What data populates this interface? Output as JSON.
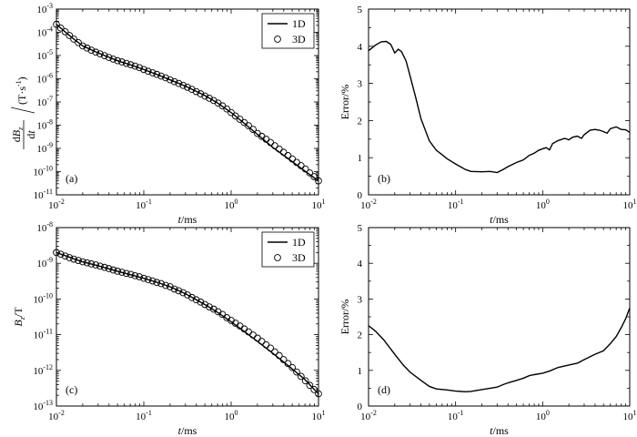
{
  "chart_data": [
    {
      "id": "a",
      "type": "line",
      "panel_label": "(a)",
      "x_scale": "log",
      "y_scale": "log",
      "xlabel": "t/ms",
      "xlabel_italic": "t",
      "xlabel_unit": "/ms",
      "ylabel": "dBz/dt /(T·s⁻¹)",
      "ylabel_num": "dB",
      "ylabel_sub": "z",
      "ylabel_den": "dt",
      "ylabel_unit": "(T·s",
      "ylabel_unit_sup": "-1",
      "ylabel_unit_close": ")",
      "xlim": [
        0.01,
        10
      ],
      "ylim": [
        1e-11,
        0.001
      ],
      "x_ticks": [
        {
          "value": 0.01,
          "base": "10",
          "exp": "-2"
        },
        {
          "value": 0.1,
          "base": "10",
          "exp": "-1"
        },
        {
          "value": 1,
          "base": "10",
          "exp": "0"
        },
        {
          "value": 10,
          "base": "10",
          "exp": "1"
        }
      ],
      "y_ticks": [
        {
          "value": 0.001,
          "base": "10",
          "exp": "-3"
        },
        {
          "value": 0.0001,
          "base": "10",
          "exp": "-4"
        },
        {
          "value": 1e-05,
          "base": "10",
          "exp": "-5"
        },
        {
          "value": 1e-06,
          "base": "10",
          "exp": "-6"
        },
        {
          "value": 1e-07,
          "base": "10",
          "exp": "-7"
        },
        {
          "value": 1e-08,
          "base": "10",
          "exp": "-8"
        },
        {
          "value": 1e-09,
          "base": "10",
          "exp": "-9"
        },
        {
          "value": 1e-10,
          "base": "10",
          "exp": "-10"
        },
        {
          "value": 1e-11,
          "base": "10",
          "exp": "-11"
        }
      ],
      "legend": {
        "position": "top-right",
        "entries": [
          "1D",
          "3D"
        ]
      },
      "series": [
        {
          "name": "1D",
          "style": "line",
          "x": [
            0.01,
            0.015,
            0.02,
            0.03,
            0.05,
            0.07,
            0.1,
            0.15,
            0.2,
            0.3,
            0.5,
            0.7,
            1,
            1.5,
            2,
            3,
            5,
            7,
            10
          ],
          "y": [
            0.00022,
            6e-05,
            2.6e-05,
            1.3e-05,
            6e-06,
            4e-06,
            2.5e-06,
            1.4e-06,
            9e-07,
            4.8e-07,
            1.9e-07,
            9e-08,
            3.5e-08,
            1e-08,
            4e-09,
            1.1e-09,
            2.7e-10,
            1.05e-10,
            4e-11
          ]
        },
        {
          "name": "3D",
          "style": "circle",
          "x": [
            0.01,
            0.0112,
            0.0126,
            0.0141,
            0.0158,
            0.0178,
            0.02,
            0.0224,
            0.0251,
            0.0282,
            0.0316,
            0.0355,
            0.0398,
            0.0447,
            0.0501,
            0.0562,
            0.0631,
            0.0708,
            0.0794,
            0.0891,
            0.1,
            0.112,
            0.126,
            0.141,
            0.158,
            0.178,
            0.2,
            0.224,
            0.251,
            0.282,
            0.316,
            0.355,
            0.398,
            0.447,
            0.501,
            0.562,
            0.631,
            0.708,
            0.794,
            0.891,
            1,
            1.12,
            1.26,
            1.41,
            1.58,
            1.78,
            2,
            2.24,
            2.51,
            2.82,
            3.16,
            3.55,
            3.98,
            4.47,
            5.01,
            5.62,
            6.31,
            7.08,
            7.94,
            8.91,
            10
          ],
          "y": [
            0.00022,
            0.000153,
            0.000106,
            7.3e-05,
            5.1e-05,
            3.6e-05,
            2.6e-05,
            2.1e-05,
            1.7e-05,
            1.4e-05,
            1.18e-05,
            9.9e-06,
            8.3e-06,
            7e-06,
            6e-06,
            5.3e-06,
            4.6e-06,
            4e-06,
            3.5e-06,
            3e-06,
            2.5e-06,
            2.1e-06,
            1.8e-06,
            1.55e-06,
            1.3e-06,
            1.1e-06,
            9e-07,
            7.5e-07,
            6.3e-07,
            5.2e-07,
            4.3e-07,
            3.5e-07,
            2.8e-07,
            2.25e-07,
            1.8e-07,
            1.45e-07,
            1.15e-07,
            9e-08,
            6.8e-08,
            5e-08,
            3.5e-08,
            2.5e-08,
            1.8e-08,
            1.3e-08,
            9.5e-09,
            6.6e-09,
            4.4e-09,
            3.3e-09,
            2.5e-09,
            1.8e-09,
            1.3e-09,
            9.4e-10,
            6.8e-10,
            4.9e-10,
            3.5e-10,
            2.5e-10,
            1.8e-10,
            1.3e-10,
            8.8e-11,
            6.1e-11,
            4e-11
          ]
        }
      ]
    },
    {
      "id": "b",
      "type": "line",
      "panel_label": "(b)",
      "x_scale": "log",
      "y_scale": "linear",
      "xlabel": "t/ms",
      "xlabel_italic": "t",
      "xlabel_unit": "/ms",
      "ylabel": "Error/%",
      "xlim": [
        0.01,
        10
      ],
      "ylim": [
        0,
        5
      ],
      "x_ticks": [
        {
          "value": 0.01,
          "base": "10",
          "exp": "-2"
        },
        {
          "value": 0.1,
          "base": "10",
          "exp": "-1"
        },
        {
          "value": 1,
          "base": "10",
          "exp": "0"
        },
        {
          "value": 10,
          "base": "10",
          "exp": "1"
        }
      ],
      "y_ticks": [
        {
          "value": 0,
          "label": "0"
        },
        {
          "value": 1,
          "label": "1"
        },
        {
          "value": 2,
          "label": "2"
        },
        {
          "value": 3,
          "label": "3"
        },
        {
          "value": 4,
          "label": "4"
        },
        {
          "value": 5,
          "label": "5"
        }
      ],
      "series": [
        {
          "name": "Error",
          "style": "line",
          "x": [
            0.01,
            0.012,
            0.014,
            0.016,
            0.018,
            0.02,
            0.022,
            0.024,
            0.027,
            0.03,
            0.035,
            0.04,
            0.05,
            0.06,
            0.07,
            0.08,
            0.1,
            0.13,
            0.15,
            0.2,
            0.25,
            0.3,
            0.35,
            0.4,
            0.5,
            0.6,
            0.7,
            0.8,
            0.9,
            1,
            1.1,
            1.2,
            1.3,
            1.5,
            1.8,
            2,
            2.2,
            2.5,
            2.8,
            3,
            3.5,
            4,
            4.5,
            5,
            5.5,
            6,
            7,
            8,
            9,
            10
          ],
          "y": [
            3.88,
            4.03,
            4.12,
            4.13,
            4.05,
            3.82,
            3.92,
            3.85,
            3.6,
            3.2,
            2.6,
            2.05,
            1.45,
            1.2,
            1.08,
            0.97,
            0.83,
            0.68,
            0.63,
            0.62,
            0.63,
            0.6,
            0.68,
            0.76,
            0.87,
            0.94,
            1.06,
            1.12,
            1.2,
            1.24,
            1.27,
            1.21,
            1.38,
            1.46,
            1.52,
            1.48,
            1.55,
            1.58,
            1.52,
            1.62,
            1.74,
            1.76,
            1.74,
            1.7,
            1.66,
            1.78,
            1.83,
            1.76,
            1.75,
            1.68
          ]
        }
      ]
    },
    {
      "id": "c",
      "type": "line",
      "panel_label": "(c)",
      "x_scale": "log",
      "y_scale": "log",
      "xlabel": "t/ms",
      "xlabel_italic": "t",
      "xlabel_unit": "/ms",
      "ylabel": "Bz/T",
      "ylabel_main": "B",
      "ylabel_sub": "z",
      "ylabel_unit": "/T",
      "xlim": [
        0.01,
        10
      ],
      "ylim": [
        1e-13,
        1e-08
      ],
      "x_ticks": [
        {
          "value": 0.01,
          "base": "10",
          "exp": "-2"
        },
        {
          "value": 0.1,
          "base": "10",
          "exp": "-1"
        },
        {
          "value": 1,
          "base": "10",
          "exp": "0"
        },
        {
          "value": 10,
          "base": "10",
          "exp": "1"
        }
      ],
      "y_ticks": [
        {
          "value": 1e-08,
          "base": "10",
          "exp": "-8"
        },
        {
          "value": 1e-09,
          "base": "10",
          "exp": "-9"
        },
        {
          "value": 1e-10,
          "base": "10",
          "exp": "-10"
        },
        {
          "value": 1e-11,
          "base": "10",
          "exp": "-11"
        },
        {
          "value": 1e-12,
          "base": "10",
          "exp": "-12"
        },
        {
          "value": 1e-13,
          "base": "10",
          "exp": "-13"
        }
      ],
      "legend": {
        "position": "top-right",
        "entries": [
          "1D",
          "3D"
        ]
      },
      "series": [
        {
          "name": "1D",
          "style": "line",
          "x": [
            0.01,
            0.015,
            0.02,
            0.03,
            0.05,
            0.07,
            0.1,
            0.15,
            0.2,
            0.3,
            0.5,
            0.7,
            1,
            1.5,
            2,
            3,
            5,
            7,
            10
          ],
          "y": [
            2e-09,
            1.4e-09,
            1.1e-09,
            8.5e-10,
            6e-10,
            4.8e-10,
            3.8e-10,
            2.8e-10,
            2.2e-10,
            1.4e-10,
            7e-11,
            4.2e-11,
            2.3e-11,
            1.1e-11,
            6.5e-12,
            3e-12,
            1.1e-12,
            5.5e-13,
            2.2e-13
          ]
        },
        {
          "name": "3D",
          "style": "circle",
          "x": [
            0.01,
            0.0112,
            0.0126,
            0.0141,
            0.0158,
            0.0178,
            0.02,
            0.0224,
            0.0251,
            0.0282,
            0.0316,
            0.0355,
            0.0398,
            0.0447,
            0.0501,
            0.0562,
            0.0631,
            0.0708,
            0.0794,
            0.0891,
            0.1,
            0.112,
            0.126,
            0.141,
            0.158,
            0.178,
            0.2,
            0.224,
            0.251,
            0.282,
            0.316,
            0.355,
            0.398,
            0.447,
            0.501,
            0.562,
            0.631,
            0.708,
            0.794,
            0.891,
            1,
            1.12,
            1.26,
            1.41,
            1.58,
            1.78,
            2,
            2.24,
            2.51,
            2.82,
            3.16,
            3.55,
            3.98,
            4.47,
            5.01,
            5.62,
            6.31,
            7.08,
            7.94,
            8.91,
            10
          ],
          "y": [
            2e-09,
            1.8e-09,
            1.6e-09,
            1.44e-09,
            1.31e-09,
            1.2e-09,
            1.1e-09,
            1.03e-09,
            9.6e-10,
            9e-10,
            8.3e-10,
            7.7e-10,
            7.1e-10,
            6.5e-10,
            6e-10,
            5.6e-10,
            5.2e-10,
            4.9e-10,
            4.5e-10,
            4.2e-10,
            3.8e-10,
            3.5e-10,
            3.2e-10,
            2.9e-10,
            2.7e-10,
            2.4e-10,
            2.2e-10,
            1.9e-10,
            1.7e-10,
            1.5e-10,
            1.3e-10,
            1.1e-10,
            9.5e-11,
            8.2e-11,
            7e-11,
            6e-11,
            5.2e-11,
            4.4e-11,
            3.7e-11,
            3e-11,
            2.5e-11,
            2.1e-11,
            1.75e-11,
            1.45e-11,
            1.2e-11,
            9.8e-12,
            8e-12,
            6.5e-12,
            5.2e-12,
            4.2e-12,
            3.3e-12,
            2.6e-12,
            2e-12,
            1.55e-12,
            1.2e-12,
            9e-13,
            6.8e-13,
            5.1e-13,
            3.8e-13,
            2.9e-13,
            2.2e-13
          ]
        }
      ]
    },
    {
      "id": "d",
      "type": "line",
      "panel_label": "(d)",
      "x_scale": "log",
      "y_scale": "linear",
      "xlabel": "t/ms",
      "xlabel_italic": "t",
      "xlabel_unit": "/ms",
      "ylabel": "Error/%",
      "xlim": [
        0.01,
        10
      ],
      "ylim": [
        0,
        5
      ],
      "x_ticks": [
        {
          "value": 0.01,
          "base": "10",
          "exp": "-2"
        },
        {
          "value": 0.1,
          "base": "10",
          "exp": "-1"
        },
        {
          "value": 1,
          "base": "10",
          "exp": "0"
        },
        {
          "value": 10,
          "base": "10",
          "exp": "1"
        }
      ],
      "y_ticks": [
        {
          "value": 0,
          "label": "0"
        },
        {
          "value": 1,
          "label": "1"
        },
        {
          "value": 2,
          "label": "2"
        },
        {
          "value": 3,
          "label": "3"
        },
        {
          "value": 4,
          "label": "4"
        },
        {
          "value": 5,
          "label": "5"
        }
      ],
      "series": [
        {
          "name": "Error",
          "style": "line",
          "x": [
            0.01,
            0.012,
            0.015,
            0.02,
            0.025,
            0.03,
            0.04,
            0.05,
            0.06,
            0.08,
            0.1,
            0.13,
            0.15,
            0.2,
            0.25,
            0.3,
            0.35,
            0.4,
            0.5,
            0.6,
            0.7,
            0.8,
            1,
            1.2,
            1.5,
            2,
            2.5,
            3,
            4,
            5,
            6,
            7,
            8,
            9,
            10
          ],
          "y": [
            2.25,
            2.1,
            1.85,
            1.45,
            1.15,
            0.95,
            0.72,
            0.55,
            0.48,
            0.45,
            0.42,
            0.4,
            0.41,
            0.46,
            0.5,
            0.53,
            0.6,
            0.65,
            0.72,
            0.78,
            0.85,
            0.88,
            0.92,
            0.98,
            1.08,
            1.15,
            1.2,
            1.3,
            1.45,
            1.55,
            1.75,
            1.95,
            2.2,
            2.45,
            2.75
          ]
        }
      ]
    }
  ]
}
